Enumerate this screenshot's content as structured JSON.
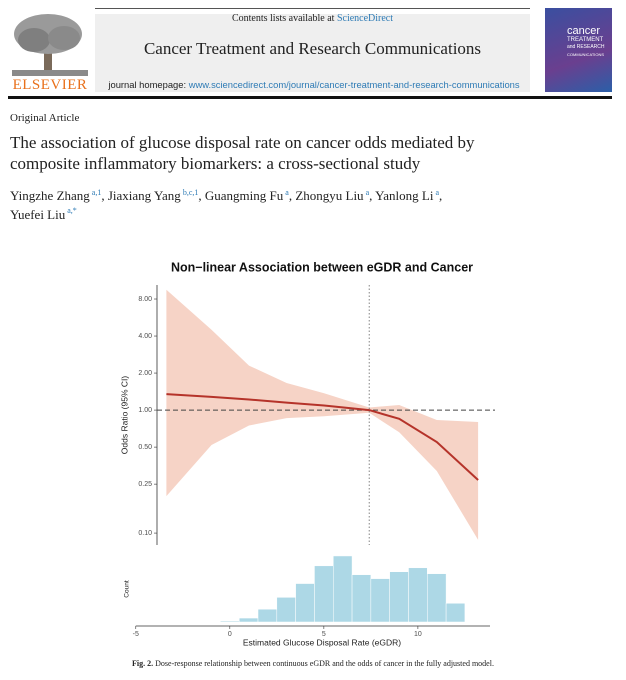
{
  "header": {
    "contents_prefix": "Contents lists available at",
    "contents_link": "ScienceDirect",
    "journal": "Cancer Treatment and Research Communications",
    "homepage_prefix": "journal homepage:",
    "homepage_url": "www.sciencedirect.com/journal/cancer-treatment-and-research-communications",
    "publisher": "ELSEVIER",
    "cover": [
      "cancer",
      "TREATMENT",
      "and RESEARCH",
      "COMMUNICATIONS"
    ]
  },
  "article": {
    "type": "Original Article",
    "title": "The association of glucose disposal rate on cancer odds mediated by composite inflammatory biomarkers: a cross-sectional study",
    "author_separator": ",",
    "authors": [
      {
        "name": "Yingzhe Zhang",
        "affiliations": "a,1"
      },
      {
        "name": "Jiaxiang Yang",
        "affiliations": "b,c,1"
      },
      {
        "name": "Guangming Fu",
        "affiliations": "a"
      },
      {
        "name": "Zhongyu Liu",
        "affiliations": "a"
      },
      {
        "name": "Yanlong Li",
        "affiliations": "a"
      },
      {
        "name": "Yuefei Liu",
        "affiliations": "a,*"
      }
    ]
  },
  "chart_data": [
    {
      "type": "line",
      "title": "Non−linear Association between eGDR and Cancer",
      "ylabel": "Odds Ratio (95% CI)",
      "log_y": true,
      "x": [
        -3.4,
        -1,
        1,
        3,
        5,
        7.4,
        9,
        11,
        13.2
      ],
      "values": [
        1.35,
        1.28,
        1.22,
        1.15,
        1.09,
        1.0,
        0.85,
        0.55,
        0.27
      ],
      "lower": [
        0.2,
        0.52,
        0.75,
        0.86,
        0.89,
        0.95,
        0.66,
        0.32,
        0.088
      ],
      "upper": [
        9.5,
        4.5,
        2.3,
        1.66,
        1.37,
        1.05,
        1.1,
        0.83,
        0.8
      ],
      "color": "#b5332a",
      "band_color": "#f6d3c6",
      "xlim": [
        -3.9,
        14.1
      ],
      "ylim": [
        0.08,
        10.4
      ],
      "yticks": [
        {
          "value": 8,
          "label": "8.00"
        },
        {
          "value": 4,
          "label": "4.00"
        },
        {
          "value": 2,
          "label": "2.00"
        },
        {
          "value": 1,
          "label": "1.00"
        },
        {
          "value": 0.5,
          "label": "0.50"
        },
        {
          "value": 0.25,
          "label": "0.25"
        },
        {
          "value": 0.1,
          "label": "0.10"
        }
      ],
      "hline": 1,
      "vline": 7.4
    },
    {
      "type": "histogram",
      "xlabel": "Estimated Glucose Disposal Rate (eGDR)",
      "ylabel": "Count",
      "bins": [
        -0.5,
        0.5,
        1.5,
        2.5,
        3.5,
        4.5,
        5.5,
        6.5,
        7.5,
        8.5,
        9.5,
        10.5,
        11.5,
        12.5
      ],
      "values": [
        1,
        4,
        13,
        25,
        39,
        57,
        67,
        48,
        44,
        51,
        55,
        49,
        19
      ],
      "color": "#add8e6",
      "xlim": [
        -5.2,
        14.1
      ],
      "ylim": [
        0,
        70
      ],
      "xticks": [
        -5,
        0,
        5,
        10
      ]
    }
  ],
  "caption": {
    "label": "Fig. 2.",
    "text": "Dose-response relationship between continuous eGDR and the odds of cancer in the fully adjusted model."
  }
}
